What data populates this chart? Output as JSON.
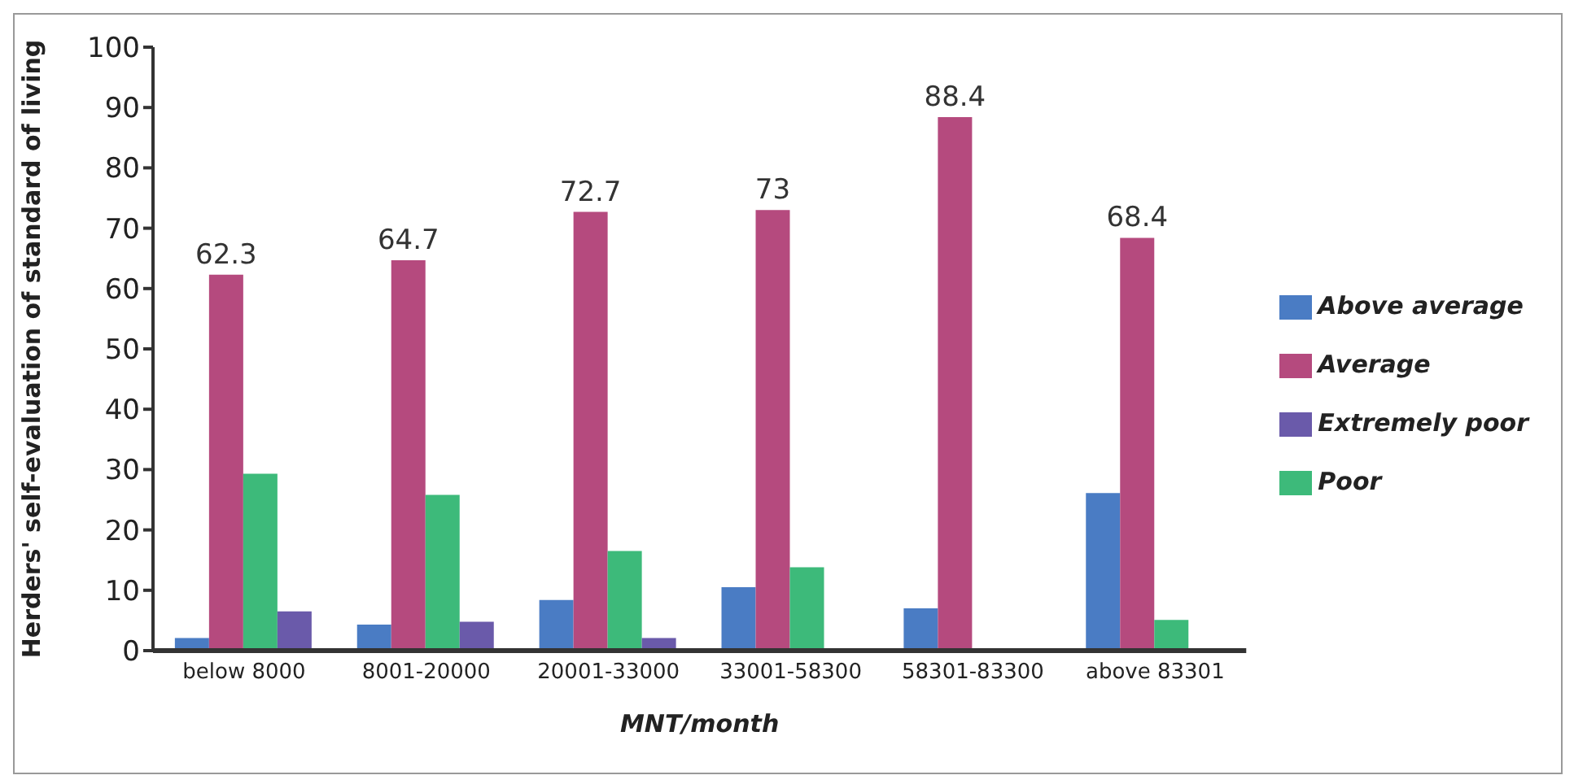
{
  "chart_data": {
    "type": "bar",
    "xlabel": "MNT/month",
    "ylabel": "Herders' self-evaluation of standard of living",
    "categories": [
      "below 8000",
      "8001-20000",
      "20001-33000",
      "33001-58300",
      "58301-83300",
      "above 83301"
    ],
    "series": [
      {
        "name": "Above average",
        "color": "#4a7cc4",
        "values": [
          2.1,
          4.3,
          8.4,
          10.5,
          7.0,
          26.1
        ]
      },
      {
        "name": "Average",
        "color": "#b54a7e",
        "values": [
          62.3,
          64.7,
          72.7,
          73,
          88.4,
          68.4
        ],
        "value_labels": [
          "62.3",
          "64.7",
          "72.7",
          "73",
          "88.4",
          "68.4"
        ]
      },
      {
        "name": "Poor",
        "color": "#3dba7a",
        "values": [
          29.3,
          25.8,
          16.5,
          13.8,
          null,
          5.1
        ]
      },
      {
        "name": "Extremely poor",
        "color": "#6a5aaa",
        "values": [
          6.5,
          4.8,
          2.1,
          null,
          null,
          null
        ]
      }
    ],
    "ylim": [
      0,
      100
    ],
    "yticks": [
      0,
      10,
      20,
      30,
      40,
      50,
      60,
      70,
      80,
      90,
      100
    ],
    "grid": false,
    "legend": "right"
  }
}
